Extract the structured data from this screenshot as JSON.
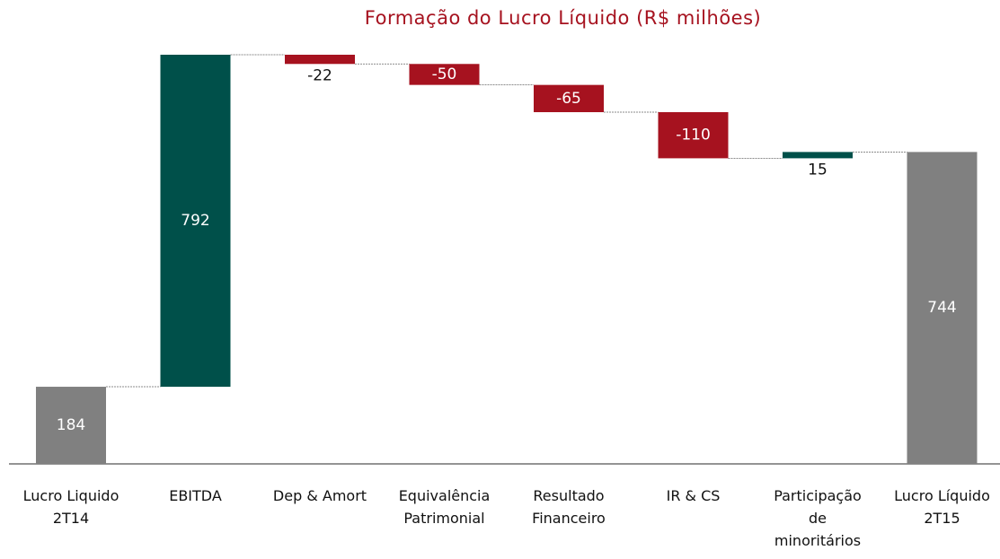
{
  "chart_data": {
    "type": "waterfall",
    "title": "Formação do Lucro Líquido (R$ milhões)",
    "categories": [
      "Lucro Liquido 2T14",
      "EBITDA",
      "Dep & Amort",
      "Equivalência Patrimonial",
      "Resultado Financeiro",
      "IR & CS",
      "Participação de minoritários",
      "Lucro Líquido 2T15"
    ],
    "values": [
      184,
      792,
      -22,
      -50,
      -65,
      -110,
      15,
      744
    ],
    "measure": [
      "absolute",
      "relative",
      "relative",
      "relative",
      "relative",
      "relative",
      "relative",
      "total"
    ],
    "total_color": "#808080",
    "increase_color": "#00504a",
    "decrease_color": "#a6121f"
  }
}
